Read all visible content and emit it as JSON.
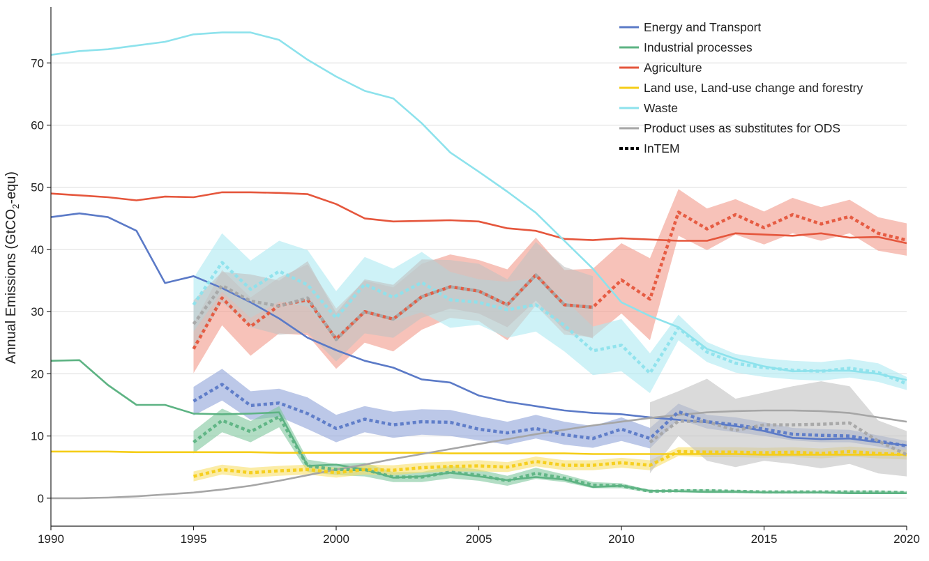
{
  "chart_data": {
    "type": "line",
    "title": "",
    "ylabel_main": "Annual Emissions (GtCO",
    "ylabel_sub": "2",
    "ylabel_tail": "-equ)",
    "xlabel": "",
    "xlim": [
      1990,
      2020
    ],
    "ylim": [
      -4.5,
      79
    ],
    "x_ticks": [
      1990,
      1995,
      2000,
      2005,
      2010,
      2015,
      2020
    ],
    "y_ticks": [
      0,
      10,
      20,
      30,
      40,
      50,
      60,
      70
    ],
    "grid": "horizontal",
    "legend_position": "top-right",
    "inventory_years": [
      1990,
      1991,
      1992,
      1993,
      1994,
      1995,
      1996,
      1997,
      1998,
      1999,
      2000,
      2001,
      2002,
      2003,
      2004,
      2005,
      2006,
      2007,
      2008,
      2009,
      2010,
      2011,
      2012,
      2013,
      2014,
      2015,
      2016,
      2017,
      2018,
      2019,
      2020
    ],
    "series": [
      {
        "name": "Energy and Transport",
        "color": "#5b7ac7",
        "band_color": "#8fa3d9",
        "inventory": [
          45.2,
          45.8,
          45.2,
          43.0,
          34.6,
          35.7,
          33.8,
          31.5,
          28.9,
          25.8,
          23.8,
          22.1,
          21.0,
          19.1,
          18.6,
          16.5,
          15.5,
          14.8,
          14.1,
          13.7,
          13.5,
          13.0,
          12.6,
          12.2,
          11.6,
          10.8,
          9.7,
          9.5,
          9.6,
          9.0,
          8.5
        ],
        "intem_start": 1995,
        "intem_mean": [
          15.6,
          18.3,
          14.9,
          15.3,
          13.6,
          11.2,
          12.7,
          11.8,
          12.3,
          12.2,
          11.1,
          10.5,
          11.2,
          10.2,
          9.6,
          11.1,
          9.6,
          13.9,
          12.3,
          11.8,
          11.1,
          10.3,
          10.1,
          10.0,
          9.2,
          8.4
        ],
        "intem_lower": [
          13.3,
          15.7,
          12.6,
          13.1,
          11.1,
          9.0,
          10.6,
          9.7,
          10.2,
          10.0,
          9.3,
          8.6,
          9.6,
          8.6,
          8.1,
          9.2,
          8.0,
          12.7,
          11.2,
          10.6,
          10.0,
          9.3,
          9.0,
          9.0,
          8.3,
          7.4
        ],
        "intem_upper": [
          17.9,
          20.8,
          17.2,
          17.6,
          16.2,
          13.4,
          14.8,
          13.9,
          14.3,
          14.2,
          13.2,
          12.3,
          13.4,
          12.3,
          11.6,
          13.0,
          11.3,
          15.2,
          13.4,
          13.0,
          12.2,
          11.3,
          11.1,
          11.0,
          10.1,
          9.2
        ]
      },
      {
        "name": "Industrial processes",
        "color": "#5db383",
        "band_color": "#7fc79c",
        "inventory": [
          22.1,
          22.2,
          18.2,
          15.0,
          15.0,
          13.6,
          13.5,
          13.6,
          13.8,
          5.2,
          5.4,
          4.6,
          3.3,
          3.5,
          4.1,
          3.5,
          2.9,
          3.4,
          3.0,
          1.8,
          2.0,
          1.2,
          1.1,
          1.0,
          1.0,
          0.9,
          0.9,
          0.9,
          0.8,
          0.8,
          0.8
        ],
        "intem_start": 1995,
        "intem_mean": [
          9.0,
          12.5,
          10.7,
          13.1,
          5.2,
          4.6,
          4.6,
          3.4,
          3.4,
          4.2,
          3.7,
          2.8,
          4.0,
          3.2,
          2.1,
          2.0,
          1.1,
          1.2,
          1.2,
          1.1,
          1.0,
          1.0,
          1.0,
          1.0,
          1.0,
          0.9
        ],
        "intem_lower": [
          7.2,
          10.6,
          9.0,
          11.4,
          4.2,
          3.7,
          3.5,
          2.6,
          2.6,
          3.2,
          2.8,
          2.0,
          3.1,
          2.6,
          1.6,
          1.6,
          0.9,
          1.0,
          1.0,
          0.9,
          0.8,
          0.8,
          0.8,
          0.8,
          0.8,
          0.7
        ],
        "intem_upper": [
          10.8,
          14.4,
          12.4,
          14.8,
          6.2,
          5.5,
          5.7,
          4.2,
          4.2,
          5.2,
          4.6,
          3.6,
          4.9,
          3.8,
          2.6,
          2.4,
          1.3,
          1.4,
          1.4,
          1.3,
          1.2,
          1.2,
          1.2,
          1.2,
          1.2,
          1.1
        ]
      },
      {
        "name": "Agriculture",
        "color": "#e5563c",
        "band_color": "#f29a8a",
        "inventory": [
          49.0,
          48.7,
          48.4,
          47.9,
          48.5,
          48.4,
          49.2,
          49.2,
          49.1,
          48.9,
          47.3,
          45.0,
          44.5,
          44.6,
          44.7,
          44.5,
          43.4,
          43.0,
          41.7,
          41.5,
          41.8,
          41.6,
          41.4,
          41.4,
          42.6,
          42.4,
          42.2,
          42.6,
          41.9,
          42.0,
          41.0
        ],
        "intem_start": 1995,
        "intem_mean": [
          24.0,
          32.2,
          27.6,
          31.0,
          31.9,
          25.6,
          30.0,
          28.8,
          32.4,
          34.0,
          33.3,
          31.1,
          35.9,
          31.1,
          30.7,
          35.1,
          32.0,
          46.0,
          43.3,
          45.6,
          43.5,
          45.6,
          44.1,
          45.3,
          42.6,
          41.5
        ],
        "intem_lower": [
          20.1,
          27.8,
          22.9,
          26.5,
          26.2,
          20.8,
          25.0,
          23.6,
          27.1,
          29.0,
          28.5,
          25.4,
          31.0,
          26.3,
          25.9,
          29.7,
          25.4,
          42.2,
          39.9,
          42.4,
          40.8,
          42.6,
          41.4,
          42.6,
          39.8,
          39.0
        ],
        "intem_upper": [
          28.0,
          36.7,
          32.3,
          35.5,
          37.6,
          30.5,
          35.0,
          33.9,
          37.7,
          39.2,
          38.3,
          36.8,
          41.9,
          36.7,
          36.9,
          41.0,
          38.6,
          49.7,
          46.6,
          48.1,
          46.1,
          48.3,
          46.8,
          48.0,
          45.2,
          44.2
        ]
      },
      {
        "name": "Land use, Land-use change and forestry",
        "color": "#f5cd17",
        "band_color": "#f8df6a",
        "inventory": [
          7.5,
          7.5,
          7.5,
          7.4,
          7.4,
          7.4,
          7.4,
          7.4,
          7.3,
          7.3,
          7.3,
          7.3,
          7.3,
          7.3,
          7.2,
          7.2,
          7.2,
          7.2,
          7.2,
          7.1,
          7.1,
          7.1,
          7.1,
          7.1,
          7.1,
          7.0,
          7.0,
          7.0,
          7.0,
          7.0,
          7.0
        ],
        "intem_start": 1995,
        "intem_mean": [
          3.5,
          4.6,
          4.1,
          4.4,
          4.6,
          4.1,
          4.6,
          4.5,
          4.9,
          5.1,
          5.2,
          5.0,
          5.9,
          5.3,
          5.3,
          5.7,
          5.3,
          7.5,
          7.4,
          7.4,
          7.3,
          7.4,
          7.2,
          7.5,
          7.2,
          7.0
        ],
        "intem_lower": [
          2.7,
          3.8,
          3.3,
          3.6,
          3.8,
          3.3,
          3.8,
          3.7,
          4.1,
          4.3,
          4.3,
          4.2,
          5.1,
          4.5,
          4.5,
          4.9,
          4.5,
          6.8,
          6.6,
          6.6,
          6.5,
          6.6,
          6.4,
          6.7,
          6.4,
          6.2
        ],
        "intem_upper": [
          4.3,
          5.4,
          4.9,
          5.2,
          5.4,
          4.9,
          5.4,
          5.3,
          5.7,
          5.9,
          6.1,
          5.8,
          6.7,
          6.1,
          6.1,
          6.5,
          6.1,
          8.2,
          8.2,
          8.2,
          8.1,
          8.2,
          8.0,
          8.3,
          8.0,
          7.8
        ]
      },
      {
        "name": "Waste",
        "color": "#8de2ec",
        "band_color": "#aeeaf2",
        "inventory": [
          71.3,
          71.9,
          72.2,
          72.8,
          73.4,
          74.6,
          74.9,
          74.9,
          73.7,
          70.5,
          67.8,
          65.5,
          64.3,
          60.3,
          55.6,
          52.5,
          49.3,
          45.9,
          41.4,
          36.9,
          31.5,
          29.3,
          27.5,
          24.0,
          22.4,
          21.2,
          20.4,
          20.5,
          20.5,
          20.0,
          19.0
        ],
        "intem_start": 1995,
        "intem_mean": [
          31.1,
          37.9,
          33.6,
          36.5,
          34.3,
          29.0,
          34.4,
          32.3,
          34.7,
          31.9,
          31.5,
          30.3,
          31.1,
          27.8,
          23.7,
          24.6,
          20.1,
          27.4,
          23.5,
          21.7,
          21.0,
          20.6,
          20.4,
          20.9,
          20.2,
          18.4
        ],
        "intem_lower": [
          26.8,
          33.2,
          29.0,
          31.6,
          30.8,
          25.4,
          30.0,
          28.5,
          29.9,
          27.4,
          27.9,
          25.8,
          26.8,
          23.6,
          19.8,
          20.4,
          16.9,
          25.4,
          21.9,
          20.2,
          19.5,
          19.1,
          18.9,
          19.4,
          18.7,
          17.4
        ],
        "intem_upper": [
          35.4,
          42.6,
          38.2,
          41.4,
          39.9,
          33.3,
          38.8,
          36.9,
          39.6,
          36.4,
          35.2,
          34.8,
          35.4,
          32.0,
          27.6,
          28.8,
          23.3,
          29.5,
          25.1,
          23.2,
          22.5,
          22.1,
          21.9,
          22.4,
          21.7,
          19.5
        ]
      },
      {
        "name": "Product uses as substitutes for ODS",
        "color": "#a6a6a6",
        "band_color": "#c2c2c2",
        "inventory": [
          0.0,
          0.0,
          0.1,
          0.3,
          0.6,
          0.9,
          1.4,
          2.0,
          2.8,
          3.7,
          4.6,
          5.4,
          6.3,
          7.1,
          7.9,
          8.7,
          9.5,
          10.3,
          11.0,
          11.7,
          12.3,
          12.9,
          13.4,
          13.8,
          14.0,
          14.1,
          14.1,
          14.0,
          13.7,
          13.0,
          12.3
        ],
        "intem_start": 1995,
        "intem_mean": [
          28.0,
          34.2,
          31.7,
          30.9,
          32.2,
          25.5,
          30.0,
          28.8,
          32.4,
          34.0,
          33.3,
          31.1,
          35.9,
          31.1,
          30.7,
          null,
          9.0,
          12.4,
          12.3,
          10.9,
          11.8,
          11.8,
          11.9,
          12.1,
          9.2,
          7.0
        ],
        "intem_lower": [
          24.0,
          31.5,
          27.5,
          26.3,
          26.6,
          22.0,
          26.5,
          25.8,
          29.0,
          30.5,
          29.7,
          27.5,
          31.8,
          27.0,
          25.7,
          null,
          4.0,
          10.0,
          6.0,
          5.0,
          6.0,
          5.5,
          4.8,
          5.5,
          4.0,
          3.5
        ],
        "intem_upper": [
          31.8,
          36.4,
          36.0,
          35.0,
          38.1,
          29.8,
          35.2,
          34.3,
          38.4,
          38.3,
          37.7,
          35.2,
          41.2,
          37.2,
          35.7,
          null,
          15.4,
          17.2,
          19.2,
          16.0,
          17.0,
          18.0,
          18.8,
          18.0,
          12.5,
          10.8
        ]
      }
    ],
    "legend": [
      {
        "label": "Energy and Transport",
        "color": "#5b7ac7",
        "style": "solid"
      },
      {
        "label": "Industrial processes",
        "color": "#5db383",
        "style": "solid"
      },
      {
        "label": "Agriculture",
        "color": "#e5563c",
        "style": "solid"
      },
      {
        "label": "Land use, Land-use change and forestry",
        "color": "#f5cd17",
        "style": "solid"
      },
      {
        "label": "Waste",
        "color": "#8de2ec",
        "style": "solid"
      },
      {
        "label": "Product uses as substitutes for ODS",
        "color": "#a6a6a6",
        "style": "solid"
      },
      {
        "label": "InTEM",
        "color": "#000000",
        "style": "dotted"
      }
    ]
  }
}
